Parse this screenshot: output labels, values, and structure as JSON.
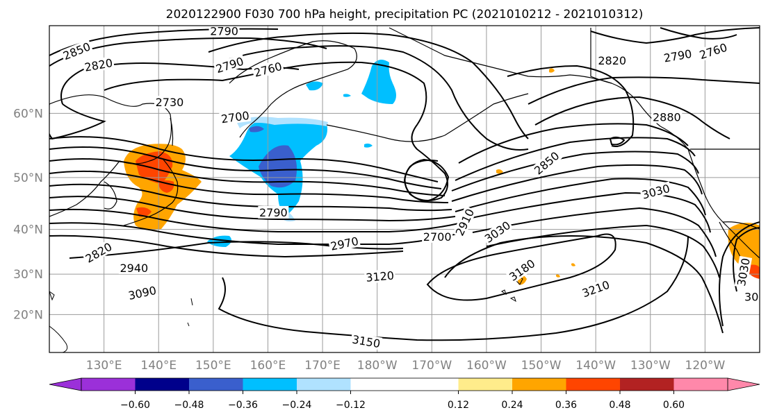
{
  "title": "2020122900 F030 700 hPa height, precipitation PC (2021010212 - 2021010312)",
  "map": {
    "lat_labels": [
      "60°N",
      "50°N",
      "40°N",
      "30°N",
      "20°N"
    ],
    "lat_values": [
      60,
      50,
      40,
      30,
      20
    ],
    "lon_labels": [
      "130°E",
      "140°E",
      "150°E",
      "160°E",
      "170°E",
      "180°W",
      "170°W",
      "160°W",
      "150°W",
      "140°W",
      "130°W",
      "120°W"
    ],
    "lon_values": [
      130,
      140,
      150,
      160,
      170,
      180,
      190,
      200,
      210,
      220,
      230,
      240
    ],
    "lon_range": [
      120,
      250
    ],
    "lat_range": [
      10,
      70
    ],
    "contour_labels": [
      {
        "text": "2850",
        "lon": 125,
        "lat": 67.5,
        "rot": -22
      },
      {
        "text": "2820",
        "lon": 129,
        "lat": 66,
        "rot": -10
      },
      {
        "text": "2790",
        "lon": 152,
        "lat": 69.5,
        "rot": 0
      },
      {
        "text": "2790",
        "lon": 153,
        "lat": 66,
        "rot": -18
      },
      {
        "text": "2760",
        "lon": 160,
        "lat": 65.5,
        "rot": -15
      },
      {
        "text": "2730",
        "lon": 142,
        "lat": 61.5,
        "rot": 0
      },
      {
        "text": "2700",
        "lon": 154,
        "lat": 59.5,
        "rot": -8
      },
      {
        "text": "2820",
        "lon": 223,
        "lat": 66.5,
        "rot": 0
      },
      {
        "text": "2790",
        "lon": 235,
        "lat": 67,
        "rot": -10
      },
      {
        "text": "2760",
        "lon": 241.5,
        "lat": 67.5,
        "rot": -18
      },
      {
        "text": "2880",
        "lon": 233,
        "lat": 59.5,
        "rot": 0
      },
      {
        "text": "2850",
        "lon": 211,
        "lat": 52.5,
        "rot": -40
      },
      {
        "text": "3030",
        "lon": 231,
        "lat": 47.5,
        "rot": -15
      },
      {
        "text": "2790",
        "lon": 161,
        "lat": 43.5,
        "rot": 0
      },
      {
        "text": "2970",
        "lon": 174,
        "lat": 37,
        "rot": -12
      },
      {
        "text": "2700",
        "lon": 191,
        "lat": 38.5,
        "rot": 0
      },
      {
        "text": "2910",
        "lon": 196,
        "lat": 41.5,
        "rot": -65
      },
      {
        "text": "3030",
        "lon": 202,
        "lat": 39.5,
        "rot": -35
      },
      {
        "text": "2820",
        "lon": 129,
        "lat": 35,
        "rot": -30
      },
      {
        "text": "2940",
        "lon": 135.5,
        "lat": 31.5,
        "rot": 0
      },
      {
        "text": "3120",
        "lon": 180.5,
        "lat": 29.5,
        "rot": -5
      },
      {
        "text": "3180",
        "lon": 206.5,
        "lat": 31,
        "rot": -35
      },
      {
        "text": "3090",
        "lon": 137,
        "lat": 25.5,
        "rot": -12
      },
      {
        "text": "3210",
        "lon": 220,
        "lat": 26.5,
        "rot": -20
      },
      {
        "text": "3150",
        "lon": 178,
        "lat": 13,
        "rot": 10
      },
      {
        "text": "3030",
        "lon": 247,
        "lat": 30.5,
        "rot": -80
      },
      {
        "text": "30",
        "lon": 248.5,
        "lat": 24.5,
        "rot": 0
      }
    ]
  },
  "colorbar": {
    "tick_labels": [
      "−0.60",
      "−0.48",
      "−0.36",
      "−0.24",
      "−0.12",
      "0.12",
      "0.24",
      "0.36",
      "0.48",
      "0.60"
    ],
    "ticks": [
      -0.6,
      -0.48,
      -0.36,
      -0.24,
      -0.12,
      0.12,
      0.24,
      0.36,
      0.48,
      0.6
    ],
    "levels": [
      -0.72,
      -0.6,
      -0.48,
      -0.36,
      -0.24,
      -0.12,
      0.12,
      0.24,
      0.36,
      0.48,
      0.6,
      0.72
    ],
    "colors": [
      "#9b30d9",
      "#00008b",
      "#3a5fcd",
      "#00bfff",
      "#b0e2ff",
      "#ffffff",
      "#ffec8b",
      "#ffa500",
      "#ff4500",
      "#b22222",
      "#ff88aa"
    ],
    "extend_colors": [
      "#9b30d9",
      "#ff88aa"
    ]
  }
}
